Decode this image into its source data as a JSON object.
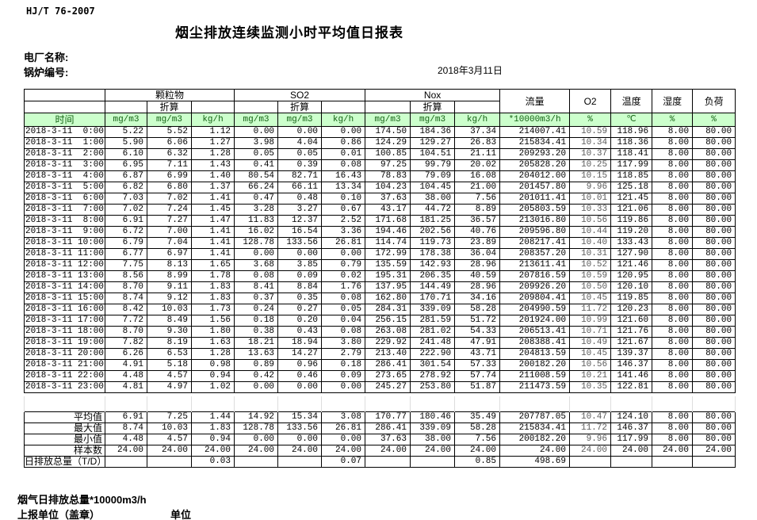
{
  "page": {
    "standard": "HJ/T  76-2007",
    "title": "烟尘排放连续监测小时平均值日报表",
    "plant_label": "电厂名称:",
    "boiler_label": "锅炉编号:",
    "date": "2018年3月11日",
    "footnote": "烟气日排放总量*10000m3/h",
    "report_unit_label": "上报单位（盖章）",
    "unit_label": "单位"
  },
  "colors": {
    "header_green_bg": "#ccffcc",
    "header_green_text": "#156315",
    "o2_text": "#595959",
    "border": "#000000"
  },
  "table": {
    "header": {
      "time_label": "时间",
      "pm_group": "颗粒物",
      "so2_group": "SO2",
      "nox_group": "Nox",
      "converted_label": "折算",
      "flow_label": "流量",
      "o2_label": "O2",
      "temp_label": "温度",
      "humidity_label": "湿度",
      "load_label": "负荷",
      "units": [
        "mg/m3",
        "mg/m3",
        "kg/h",
        "mg/m3",
        "mg/m3",
        "kg/h",
        "mg/m3",
        "mg/m3",
        "kg/h",
        "*10000m3/h",
        "%",
        "℃",
        "%",
        "%"
      ]
    },
    "rows": [
      {
        "time": "2018-3-11  0:00",
        "values": [
          "5.22",
          "5.52",
          "1.12",
          "0.00",
          "0.00",
          "0.00",
          "174.50",
          "184.36",
          "37.34",
          "214007.41",
          "10.59",
          "118.96",
          "8.00",
          "80.00"
        ]
      },
      {
        "time": "2018-3-11  1:00",
        "values": [
          "5.90",
          "6.06",
          "1.27",
          "3.98",
          "4.04",
          "0.86",
          "124.29",
          "129.27",
          "26.83",
          "215834.41",
          "10.34",
          "118.36",
          "8.00",
          "80.00"
        ]
      },
      {
        "time": "2018-3-11  2:00",
        "values": [
          "6.10",
          "6.32",
          "1.28",
          "0.05",
          "0.05",
          "0.01",
          "100.85",
          "104.51",
          "21.11",
          "209293.20",
          "10.37",
          "118.41",
          "8.00",
          "80.00"
        ]
      },
      {
        "time": "2018-3-11  3:00",
        "values": [
          "6.95",
          "7.11",
          "1.43",
          "0.41",
          "0.39",
          "0.08",
          "97.25",
          "99.79",
          "20.02",
          "205828.20",
          "10.25",
          "117.99",
          "8.00",
          "80.00"
        ]
      },
      {
        "time": "2018-3-11  4:00",
        "values": [
          "6.87",
          "6.99",
          "1.40",
          "80.54",
          "82.71",
          "16.43",
          "78.83",
          "79.09",
          "16.08",
          "204012.00",
          "10.15",
          "118.85",
          "8.00",
          "80.00"
        ]
      },
      {
        "time": "2018-3-11  5:00",
        "values": [
          "6.82",
          "6.80",
          "1.37",
          "66.24",
          "66.11",
          "13.34",
          "104.23",
          "104.45",
          "21.00",
          "201457.80",
          "9.96",
          "125.18",
          "8.00",
          "80.00"
        ]
      },
      {
        "time": "2018-3-11  6:00",
        "values": [
          "7.03",
          "7.02",
          "1.41",
          "0.47",
          "0.48",
          "0.10",
          "37.63",
          "38.00",
          "7.56",
          "201011.41",
          "10.01",
          "121.45",
          "8.00",
          "80.00"
        ]
      },
      {
        "time": "2018-3-11  7:00",
        "values": [
          "7.02",
          "7.24",
          "1.45",
          "3.28",
          "3.27",
          "0.67",
          "43.17",
          "44.72",
          "8.89",
          "205803.59",
          "10.33",
          "121.06",
          "8.00",
          "80.00"
        ]
      },
      {
        "time": "2018-3-11  8:00",
        "values": [
          "6.91",
          "7.27",
          "1.47",
          "11.83",
          "12.37",
          "2.52",
          "171.68",
          "181.25",
          "36.57",
          "213016.80",
          "10.56",
          "119.86",
          "8.00",
          "80.00"
        ]
      },
      {
        "time": "2018-3-11  9:00",
        "values": [
          "6.72",
          "7.00",
          "1.41",
          "16.02",
          "16.54",
          "3.36",
          "194.46",
          "202.56",
          "40.76",
          "209596.80",
          "10.44",
          "119.20",
          "8.00",
          "80.00"
        ]
      },
      {
        "time": "2018-3-11 10:00",
        "values": [
          "6.79",
          "7.04",
          "1.41",
          "128.78",
          "133.56",
          "26.81",
          "114.74",
          "119.73",
          "23.89",
          "208217.41",
          "10.40",
          "133.43",
          "8.00",
          "80.00"
        ]
      },
      {
        "time": "2018-3-11 11:00",
        "values": [
          "6.77",
          "6.97",
          "1.41",
          "0.00",
          "0.00",
          "0.00",
          "172.99",
          "178.38",
          "36.04",
          "208357.20",
          "10.31",
          "127.90",
          "8.00",
          "80.00"
        ]
      },
      {
        "time": "2018-3-11 12:00",
        "values": [
          "7.75",
          "8.13",
          "1.65",
          "3.68",
          "3.85",
          "0.79",
          "135.59",
          "142.93",
          "28.96",
          "213611.41",
          "10.52",
          "121.46",
          "8.00",
          "80.00"
        ]
      },
      {
        "time": "2018-3-11 13:00",
        "values": [
          "8.56",
          "8.99",
          "1.78",
          "0.08",
          "0.09",
          "0.02",
          "195.31",
          "206.35",
          "40.59",
          "207816.59",
          "10.59",
          "120.95",
          "8.00",
          "80.00"
        ]
      },
      {
        "time": "2018-3-11 14:00",
        "values": [
          "8.70",
          "9.11",
          "1.83",
          "8.41",
          "8.84",
          "1.76",
          "137.95",
          "144.49",
          "28.96",
          "209926.20",
          "10.50",
          "120.10",
          "8.00",
          "80.00"
        ]
      },
      {
        "time": "2018-3-11 15:00",
        "values": [
          "8.74",
          "9.12",
          "1.83",
          "0.37",
          "0.35",
          "0.08",
          "162.80",
          "170.71",
          "34.16",
          "209804.41",
          "10.45",
          "119.85",
          "8.00",
          "80.00"
        ]
      },
      {
        "time": "2018-3-11 16:00",
        "values": [
          "8.42",
          "10.03",
          "1.73",
          "0.24",
          "0.27",
          "0.05",
          "284.31",
          "339.09",
          "58.28",
          "204990.59",
          "11.72",
          "120.23",
          "8.00",
          "80.00"
        ]
      },
      {
        "time": "2018-3-11 17:00",
        "values": [
          "7.72",
          "8.49",
          "1.56",
          "0.18",
          "0.20",
          "0.04",
          "256.15",
          "281.59",
          "51.72",
          "201924.00",
          "10.99",
          "121.60",
          "8.00",
          "80.00"
        ]
      },
      {
        "time": "2018-3-11 18:00",
        "values": [
          "8.70",
          "9.30",
          "1.80",
          "0.38",
          "0.43",
          "0.08",
          "263.08",
          "281.02",
          "54.33",
          "206513.41",
          "10.71",
          "121.76",
          "8.00",
          "80.00"
        ]
      },
      {
        "time": "2018-3-11 19:00",
        "values": [
          "7.82",
          "8.19",
          "1.63",
          "18.21",
          "18.94",
          "3.80",
          "229.92",
          "241.48",
          "47.91",
          "208388.41",
          "10.49",
          "121.67",
          "8.00",
          "80.00"
        ]
      },
      {
        "time": "2018-3-11 20:00",
        "values": [
          "6.26",
          "6.53",
          "1.28",
          "13.63",
          "14.27",
          "2.79",
          "213.40",
          "222.90",
          "43.71",
          "204813.59",
          "10.45",
          "139.37",
          "8.00",
          "80.00"
        ]
      },
      {
        "time": "2018-3-11 21:00",
        "values": [
          "4.91",
          "5.18",
          "0.98",
          "0.89",
          "0.96",
          "0.18",
          "286.41",
          "301.54",
          "57.33",
          "200182.20",
          "10.56",
          "146.37",
          "8.00",
          "80.00"
        ]
      },
      {
        "time": "2018-3-11 22:00",
        "values": [
          "4.48",
          "4.57",
          "0.94",
          "0.42",
          "0.46",
          "0.09",
          "273.65",
          "278.92",
          "57.74",
          "211008.59",
          "10.21",
          "141.46",
          "8.00",
          "80.00"
        ]
      },
      {
        "time": "2018-3-11 23:00",
        "values": [
          "4.81",
          "4.97",
          "1.02",
          "0.00",
          "0.00",
          "0.00",
          "245.27",
          "253.80",
          "51.87",
          "211473.59",
          "10.35",
          "122.81",
          "8.00",
          "80.00"
        ]
      }
    ],
    "summary": [
      {
        "label": "平均值",
        "values": [
          "6.91",
          "7.25",
          "1.44",
          "14.92",
          "15.34",
          "3.08",
          "170.77",
          "180.46",
          "35.49",
          "207787.05",
          "10.47",
          "124.10",
          "8.00",
          "80.00"
        ]
      },
      {
        "label": "最大值",
        "values": [
          "8.74",
          "10.03",
          "1.83",
          "128.78",
          "133.56",
          "26.81",
          "286.41",
          "339.09",
          "58.28",
          "215834.41",
          "11.72",
          "146.37",
          "8.00",
          "80.00"
        ]
      },
      {
        "label": "最小值",
        "values": [
          "4.48",
          "4.57",
          "0.94",
          "0.00",
          "0.00",
          "0.00",
          "37.63",
          "38.00",
          "7.56",
          "200182.20",
          "9.96",
          "117.99",
          "8.00",
          "80.00"
        ]
      },
      {
        "label": "样本数",
        "values": [
          "24.00",
          "24.00",
          "24.00",
          "24.00",
          "24.00",
          "24.00",
          "24.00",
          "24.00",
          "24.00",
          "24.00",
          "24.00",
          "24.00",
          "24.00",
          "24.00"
        ]
      },
      {
        "label": "日排放总量（T/D）",
        "values": [
          "",
          "",
          "0.03",
          "",
          "",
          "0.07",
          "",
          "",
          "0.85",
          "498.69",
          "",
          "",
          "",
          ""
        ]
      }
    ]
  }
}
